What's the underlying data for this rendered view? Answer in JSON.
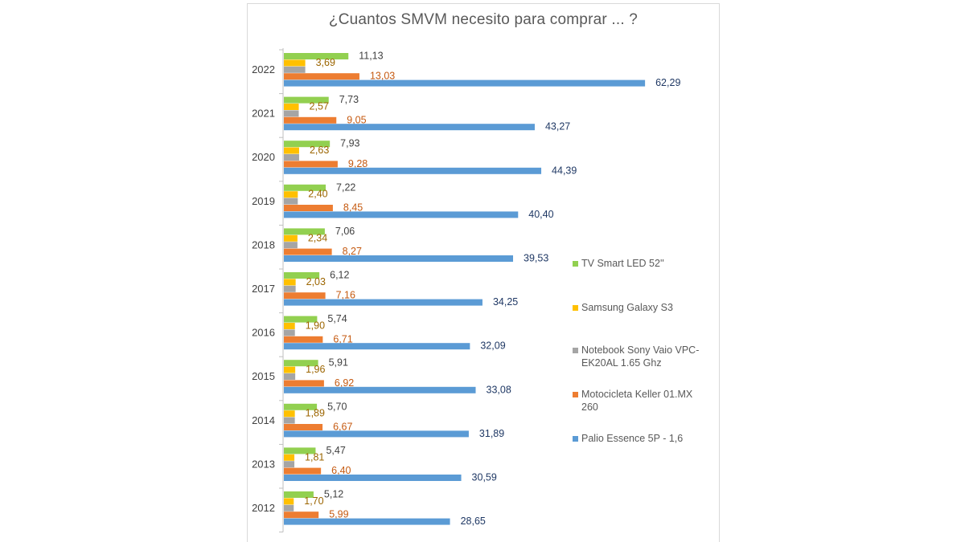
{
  "chart_data": {
    "type": "bar",
    "orientation": "horizontal",
    "title": "¿Cuantos SMVM necesito para comprar ... ?",
    "categories": [
      "2022",
      "2021",
      "2020",
      "2019",
      "2018",
      "2017",
      "2016",
      "2015",
      "2014",
      "2013",
      "2012"
    ],
    "series": [
      {
        "name": "TV Smart LED 52''",
        "color": "#92d050",
        "label_color": "#404040",
        "values": [
          11.13,
          7.73,
          7.93,
          7.22,
          7.06,
          6.12,
          5.74,
          5.91,
          5.7,
          5.47,
          5.12
        ],
        "labels": [
          "11,13",
          "7,73",
          "7,93",
          "7,22",
          "7,06",
          "6,12",
          "5,74",
          "5,91",
          "5,70",
          "5,47",
          "5,12"
        ]
      },
      {
        "name": "Samsung Galaxy S3",
        "color": "#ffc000",
        "label_color": "#9c6500",
        "values": [
          3.69,
          2.57,
          2.63,
          2.4,
          2.34,
          2.03,
          1.9,
          1.96,
          1.89,
          1.81,
          1.7
        ],
        "labels": [
          "3,69",
          "2,57",
          "2,63",
          "2,40",
          "2,34",
          "2,03",
          "1,90",
          "1,96",
          "1,89",
          "1,81",
          "1,70"
        ]
      },
      {
        "name": "Notebook Sony Vaio VPC-EK20AL 1.65  Ghz",
        "color": "#a5a5a5",
        "label_color": "#404040",
        "values": [
          3.69,
          2.57,
          2.63,
          2.4,
          2.34,
          2.03,
          1.9,
          1.96,
          1.89,
          1.81,
          1.7
        ],
        "labels": []
      },
      {
        "name": "Motocicleta Keller 01.MX 260",
        "color": "#ed7d31",
        "label_color": "#c55a11",
        "values": [
          13.03,
          9.05,
          9.28,
          8.45,
          8.27,
          7.16,
          6.71,
          6.92,
          6.67,
          6.4,
          5.99
        ],
        "labels": [
          "13,03",
          "9,05",
          "9,28",
          "8,45",
          "8,27",
          "7,16",
          "6,71",
          "6,92",
          "6,67",
          "6,40",
          "5,99"
        ]
      },
      {
        "name": "Palio Essence 5P - 1,6",
        "color": "#5b9bd5",
        "label_color": "#1f3864",
        "values": [
          62.29,
          43.27,
          44.39,
          40.4,
          39.53,
          34.25,
          32.09,
          33.08,
          31.89,
          30.59,
          28.65
        ],
        "labels": [
          "62,29",
          "43,27",
          "44,39",
          "40,40",
          "39,53",
          "34,25",
          "32,09",
          "33,08",
          "31,89",
          "30,59",
          "28,65"
        ]
      }
    ],
    "xlim": [
      0,
      70
    ],
    "grid": false,
    "legend_position": "right"
  }
}
